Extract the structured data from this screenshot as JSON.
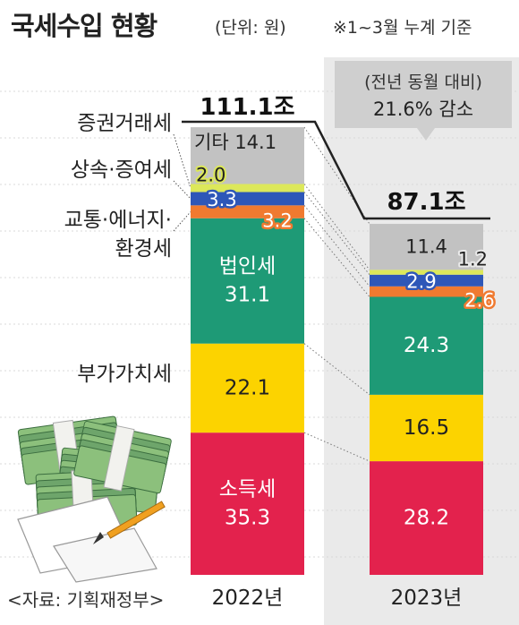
{
  "header": {
    "title": "국세수입 현황",
    "unit": "(단위: 원)",
    "note": "※1~3월 누계 기준"
  },
  "source": "<자료: 기획재정부>",
  "comparison": {
    "line1": "(전년 동월 대비)",
    "line2": "21.6% 감소"
  },
  "chart_data": {
    "type": "bar",
    "stacked": true,
    "categories": [
      "2022년",
      "2023년"
    ],
    "totals": [
      "111.1조",
      "87.1조"
    ],
    "series": [
      {
        "name": "소득세",
        "values": [
          35.3,
          28.2
        ],
        "color": "#e3224d",
        "text_color": "#ffffff"
      },
      {
        "name": "부가가치세",
        "values": [
          22.1,
          16.5
        ],
        "color": "#fcd300",
        "text_color": "#222222"
      },
      {
        "name": "법인세",
        "values": [
          31.1,
          24.3
        ],
        "color": "#1e9a76",
        "text_color": "#ffffff"
      },
      {
        "name": "교통·에너지·환경세",
        "values": [
          3.2,
          2.6
        ],
        "color": "#f07a30",
        "text_color": "#ffffff"
      },
      {
        "name": "상속·증여세",
        "values": [
          3.3,
          2.9
        ],
        "color": "#2e57b8",
        "text_color": "#ffffff"
      },
      {
        "name": "증권거래세",
        "values": [
          2.0,
          1.2
        ],
        "color": "#dce85a",
        "text_color": "#222222"
      },
      {
        "name": "기타",
        "values": [
          14.1,
          11.4
        ],
        "color": "#c2c2c2",
        "text_color": "#222222"
      }
    ],
    "side_labels": [
      {
        "series": "증권거래세",
        "lines": [
          "증권거래세"
        ]
      },
      {
        "series": "상속·증여세",
        "lines": [
          "상속·증여세"
        ]
      },
      {
        "series": "교통·에너지·환경세",
        "lines": [
          "교통·에너지·",
          "환경세"
        ]
      },
      {
        "series": "부가가치세",
        "lines": [
          "부가가치세"
        ]
      }
    ],
    "inner_name_labels": [
      "기타",
      "법인세",
      "소득세"
    ]
  }
}
